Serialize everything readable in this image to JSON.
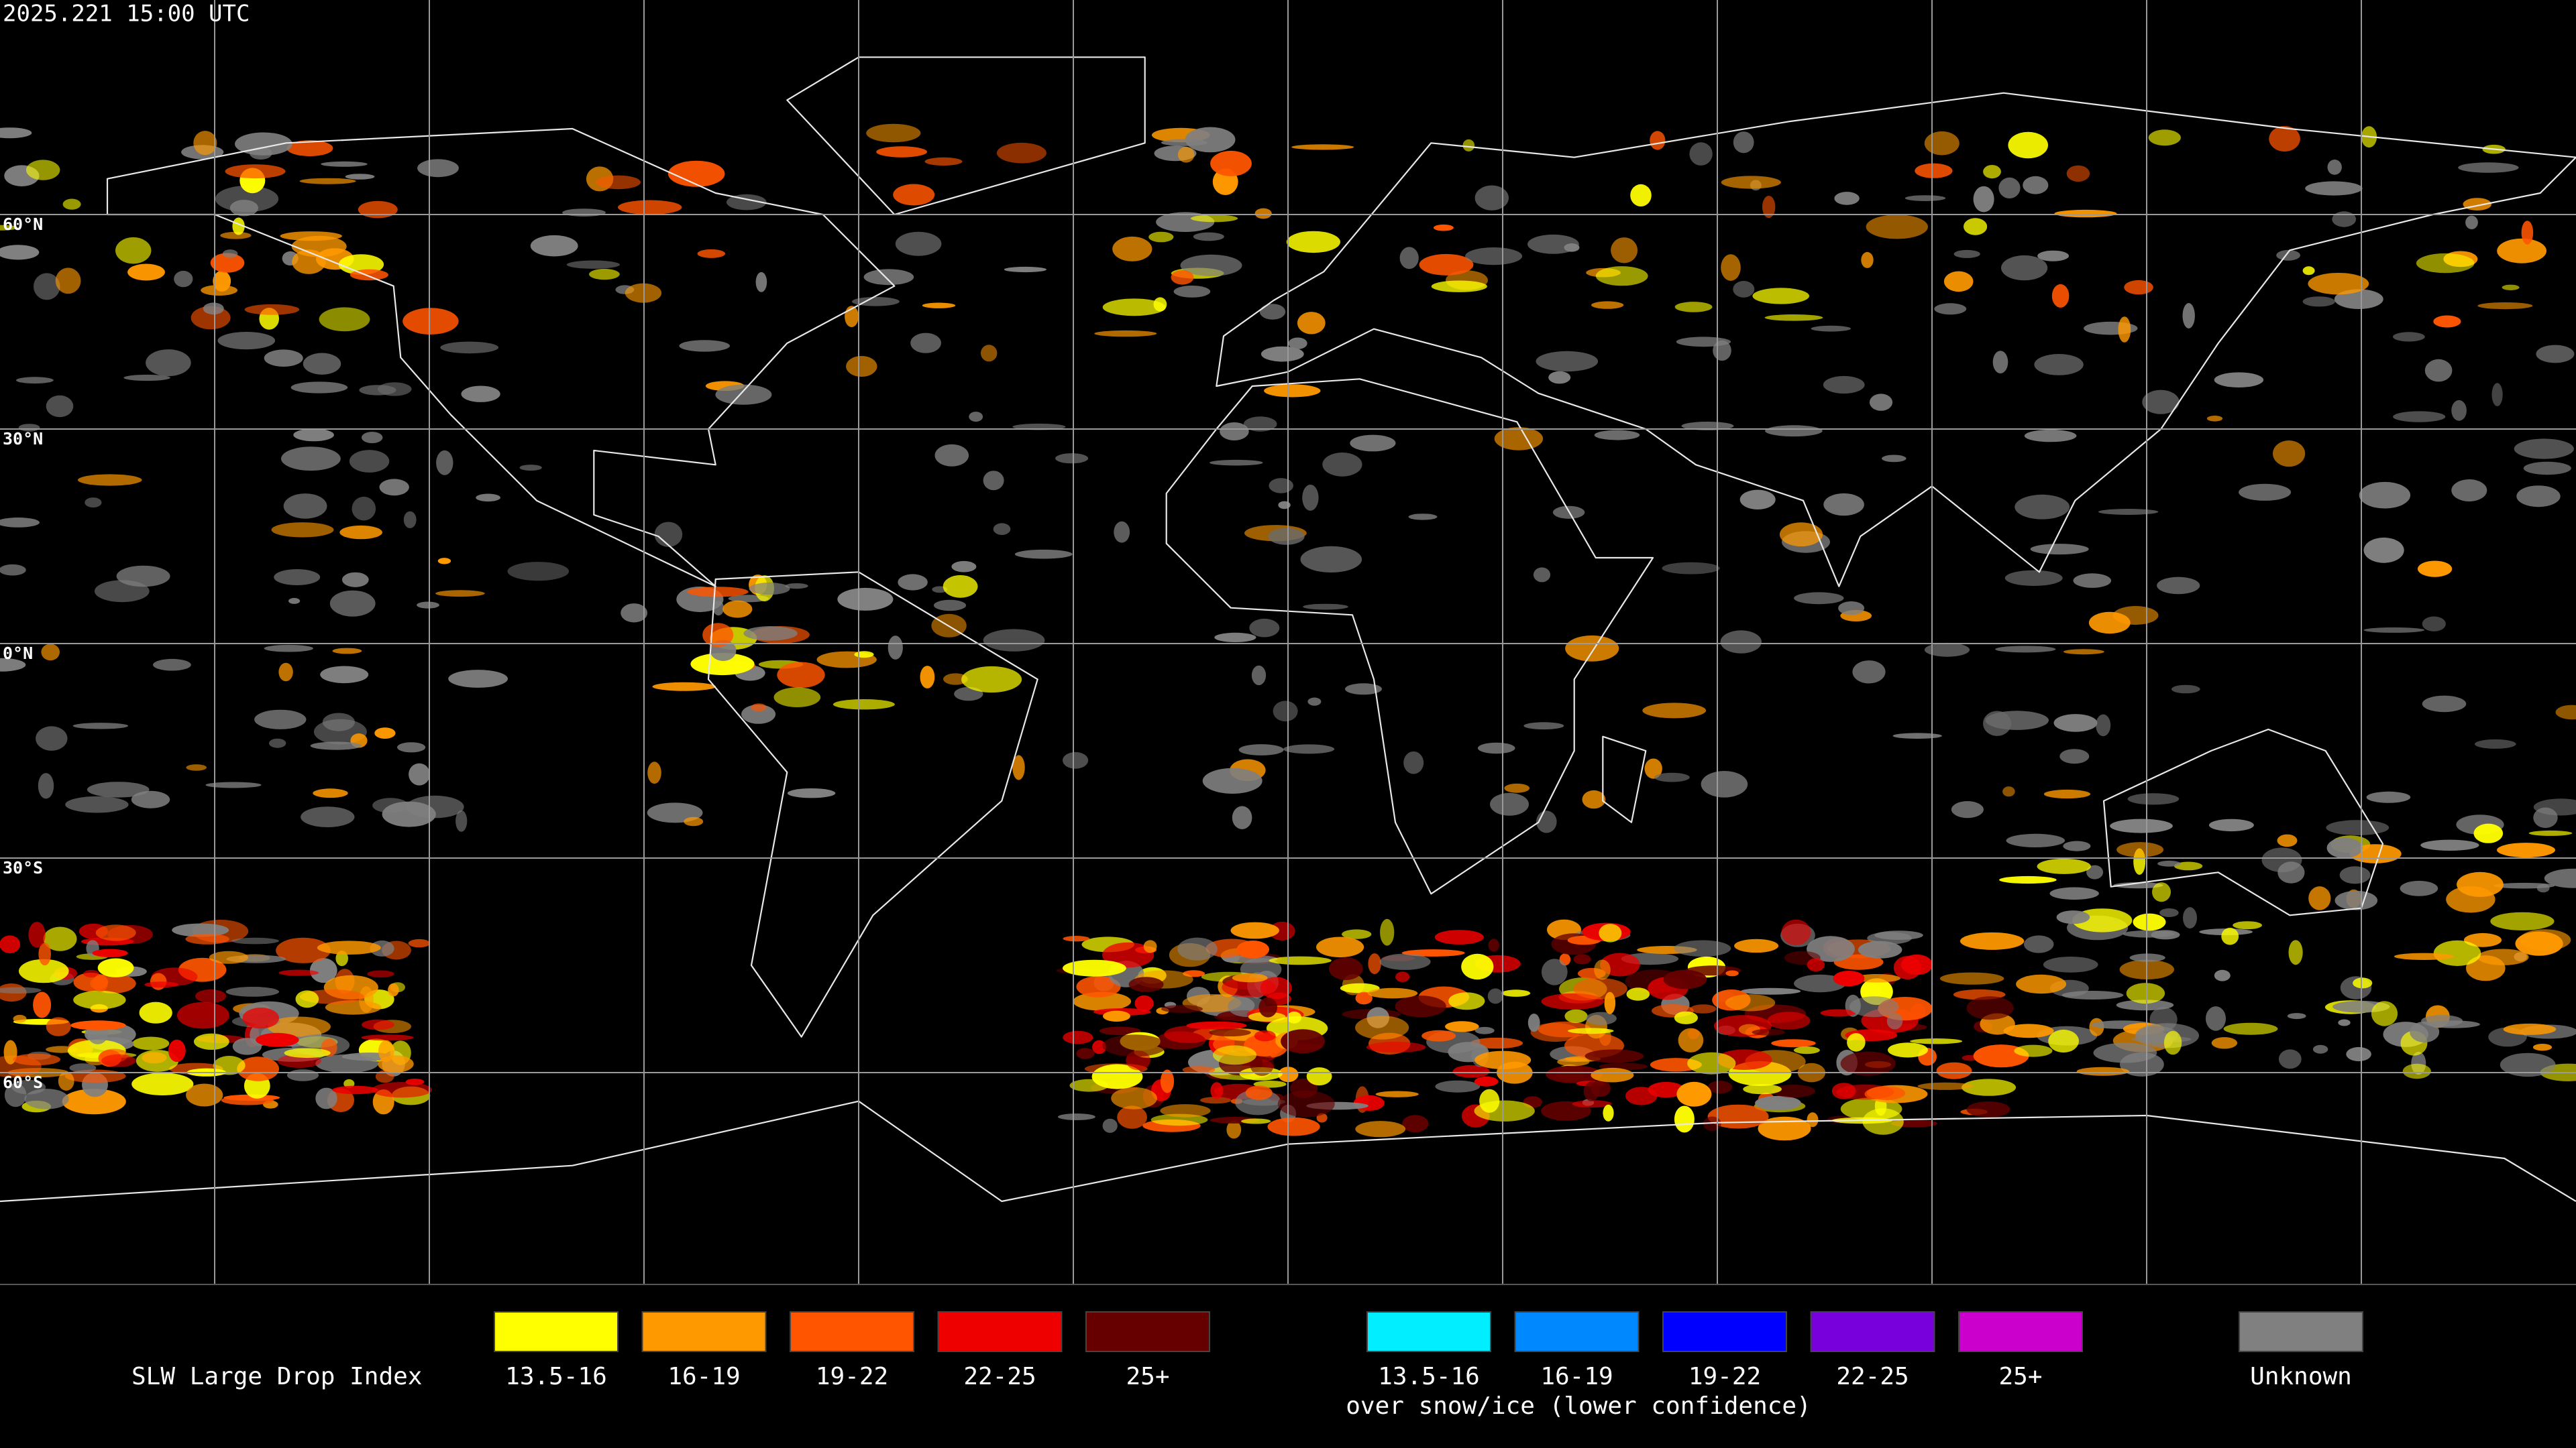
{
  "header": {
    "timestamp": "2025.221 15:00 UTC"
  },
  "map": {
    "latitude_labels": [
      "60°N",
      "30°N",
      "0°N",
      "30°S",
      "60°S"
    ]
  },
  "legend": {
    "title": "SLW Large Drop Index",
    "items": [
      {
        "label": "13.5-16",
        "color": "#ffff00"
      },
      {
        "label": "16-19",
        "color": "#ff9900"
      },
      {
        "label": "19-22",
        "color": "#ff5500"
      },
      {
        "label": "22-25",
        "color": "#ee0000"
      },
      {
        "label": "25+",
        "color": "#660000"
      }
    ],
    "snow_items": [
      {
        "label": "13.5-16",
        "color": "#00eeff"
      },
      {
        "label": "16-19",
        "color": "#0088ff"
      },
      {
        "label": "19-22",
        "color": "#0000ff"
      },
      {
        "label": "22-25",
        "color": "#7700dd"
      },
      {
        "label": "25+",
        "color": "#cc00cc"
      }
    ],
    "snow_caption": "over snow/ice (lower confidence)",
    "unknown": {
      "label": "Unknown",
      "color": "#808080"
    }
  }
}
